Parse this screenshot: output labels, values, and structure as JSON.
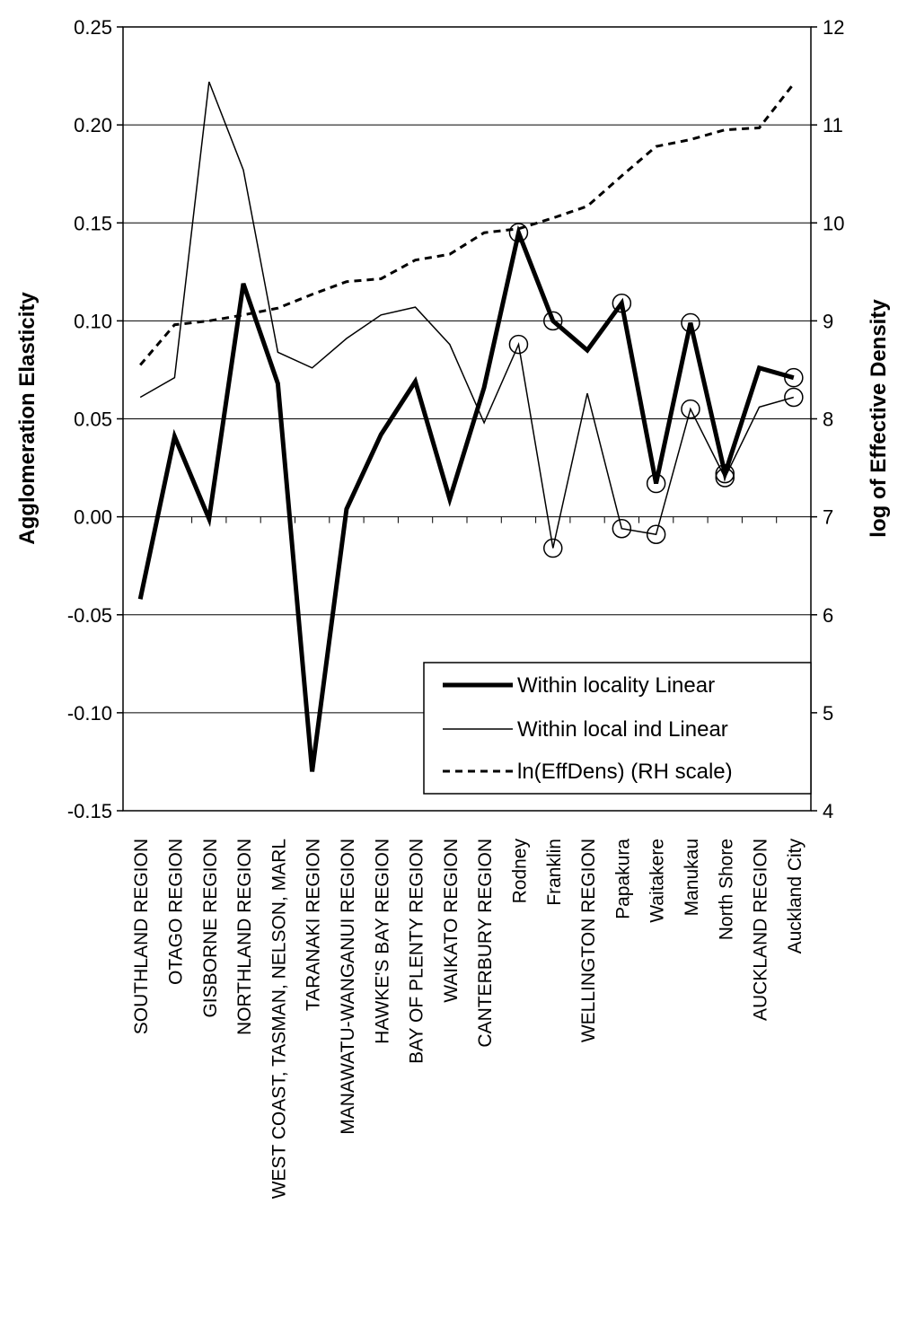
{
  "chart_data": {
    "type": "line",
    "ylabel": "Agglomeration Elasticity",
    "y2label": "log of Effective Density",
    "ylim": [
      -0.15,
      0.25
    ],
    "y2lim": [
      4,
      12
    ],
    "yticks": [
      "0.25",
      "0.20",
      "0.15",
      "0.10",
      "0.05",
      "0.00",
      "-0.05",
      "-0.10",
      "-0.15"
    ],
    "y2ticks": [
      "12",
      "11",
      "10",
      "9",
      "8",
      "7",
      "6",
      "5",
      "4"
    ],
    "grid": true,
    "legend_position": "bottom-right",
    "categories": [
      "SOUTHLAND REGION",
      "OTAGO REGION",
      "GISBORNE REGION",
      "NORTHLAND REGION",
      "WEST COAST, TASMAN, NELSON, MARL",
      "TARANAKI REGION",
      "MANAWATU-WANGANUI REGION",
      "HAWKE'S BAY REGION",
      "BAY OF PLENTY REGION",
      "WAIKATO REGION",
      "CANTERBURY REGION",
      "Rodney",
      "Franklin",
      "WELLINGTON REGION",
      "Papakura",
      "Waitakere",
      "Manukau",
      "North Shore",
      "AUCKLAND REGION",
      "Auckland City"
    ],
    "series": [
      {
        "name": "Within locality Linear",
        "axis": "left",
        "style": "thick",
        "color": "#000000",
        "values": [
          -0.042,
          0.041,
          -0.001,
          0.119,
          0.068,
          -0.13,
          0.004,
          0.042,
          0.069,
          0.009,
          0.066,
          0.145,
          0.1,
          0.085,
          0.109,
          0.017,
          0.099,
          0.022,
          0.076,
          0.071
        ],
        "circled": [
          false,
          false,
          false,
          false,
          false,
          false,
          false,
          false,
          false,
          false,
          false,
          true,
          true,
          false,
          true,
          true,
          true,
          true,
          false,
          true
        ]
      },
      {
        "name": "Within local ind Linear",
        "axis": "left",
        "style": "thin",
        "color": "#000000",
        "values": [
          0.061,
          0.071,
          0.222,
          0.177,
          0.084,
          0.076,
          0.091,
          0.103,
          0.107,
          0.088,
          0.048,
          0.088,
          -0.016,
          0.063,
          -0.006,
          -0.009,
          0.055,
          0.02,
          0.056,
          0.061
        ],
        "circled": [
          false,
          false,
          false,
          false,
          false,
          false,
          false,
          false,
          false,
          false,
          false,
          true,
          true,
          false,
          true,
          true,
          true,
          true,
          false,
          true
        ]
      },
      {
        "name": "ln(EffDens) (RH scale)",
        "axis": "right",
        "style": "dashed",
        "color": "#000000",
        "values": [
          8.55,
          8.96,
          9.0,
          9.06,
          9.13,
          9.27,
          9.4,
          9.43,
          9.62,
          9.68,
          9.9,
          9.94,
          10.05,
          10.17,
          10.48,
          10.78,
          10.85,
          10.95,
          10.97,
          11.42
        ]
      }
    ]
  }
}
